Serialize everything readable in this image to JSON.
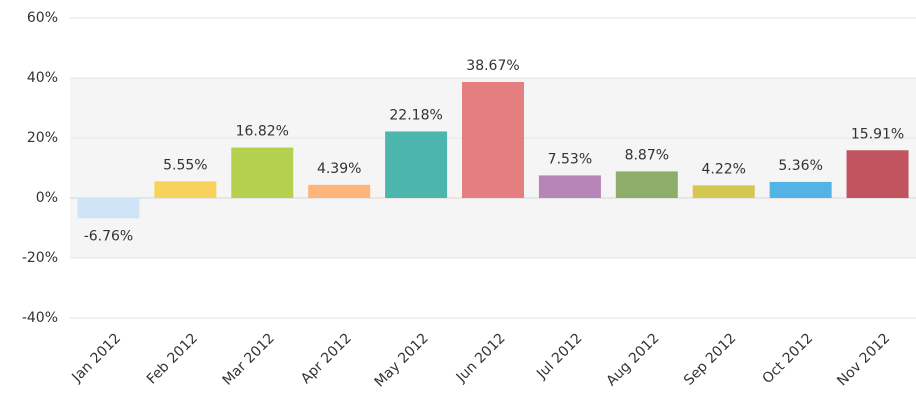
{
  "chart_data": {
    "type": "bar",
    "categories": [
      "Jan 2012",
      "Feb 2012",
      "Mar 2012",
      "Apr 2012",
      "May 2012",
      "Jun 2012",
      "Jul 2012",
      "Aug 2012",
      "Sep 2012",
      "Oct 2012",
      "Nov 2012"
    ],
    "values": [
      -6.76,
      5.55,
      16.82,
      4.39,
      22.18,
      38.67,
      7.53,
      8.87,
      4.22,
      5.36,
      15.91
    ],
    "value_labels": [
      "-6.76%",
      "5.55%",
      "16.82%",
      "4.39%",
      "22.18%",
      "38.67%",
      "7.53%",
      "8.87%",
      "4.22%",
      "5.36%",
      "15.91%"
    ],
    "colors": [
      "#cfe5f7",
      "#f9d25e",
      "#b5d04e",
      "#fdb57c",
      "#4db6ac",
      "#e57f7f",
      "#b784b8",
      "#8fad6a",
      "#d4c850",
      "#53b2e6",
      "#c1545e"
    ],
    "ylim": [
      -40,
      60
    ],
    "yticks": [
      {
        "value": -40,
        "label": "-40%"
      },
      {
        "value": -20,
        "label": "-20%"
      },
      {
        "value": 0,
        "label": "0%"
      },
      {
        "value": 20,
        "label": "20%"
      },
      {
        "value": 40,
        "label": "40%"
      },
      {
        "value": 60,
        "label": "60%"
      }
    ],
    "grid": true
  }
}
